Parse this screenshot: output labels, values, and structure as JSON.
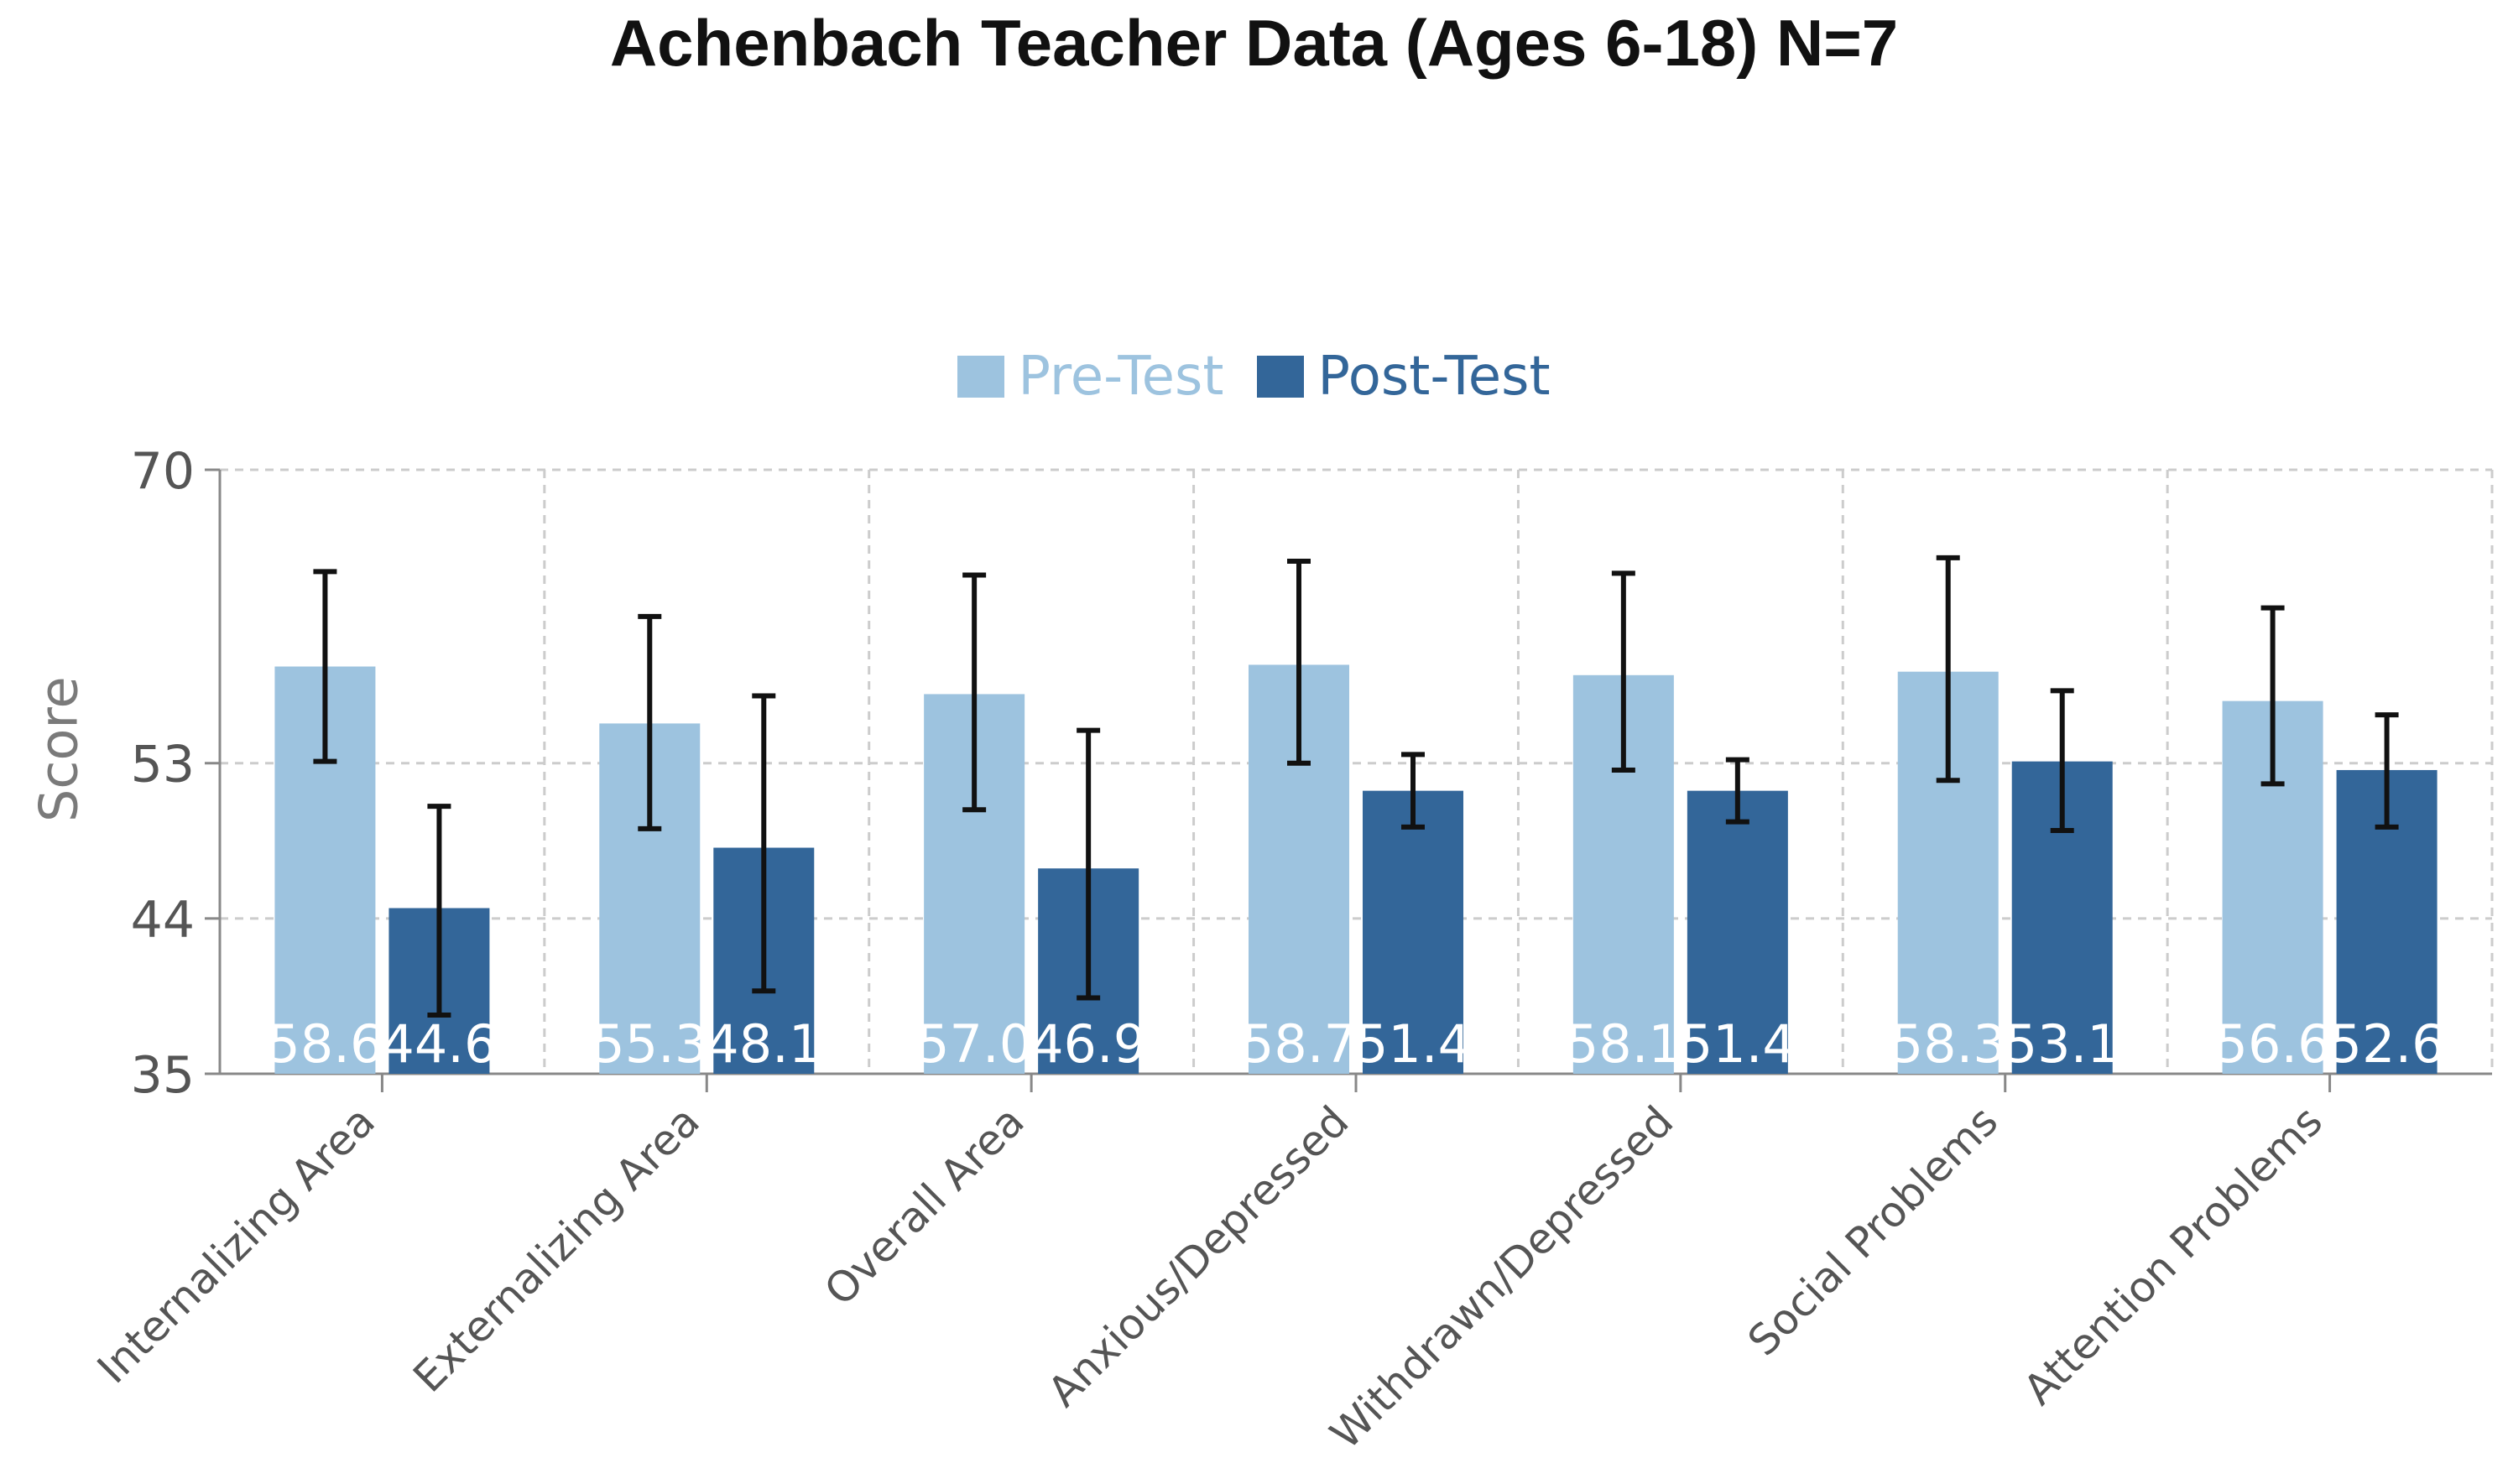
{
  "chart_data": {
    "type": "bar",
    "title": "Achenbach Teacher Data (Ages 6-18) N=7",
    "xlabel": "",
    "ylabel": "Score",
    "ylim": [
      35,
      70
    ],
    "yticks": [
      35,
      44,
      53,
      70
    ],
    "grid": true,
    "legend_position": "top-center",
    "categories": [
      "Internalizing Area",
      "Externalizing Area",
      "Overall Area",
      "Anxious/Depressed",
      "Withdrawn/Depressed",
      "Social Problems",
      "Attention Problems"
    ],
    "series": [
      {
        "name": "Pre-Test",
        "color": "#9dc3df",
        "values": [
          58.6,
          55.3,
          57.0,
          58.7,
          58.1,
          58.3,
          56.6
        ],
        "labels": [
          "58.6",
          "55.3",
          "57.0",
          "58.7",
          "58.1",
          "58.3",
          "56.6"
        ],
        "error_low": [
          53.1,
          49.2,
          50.3,
          53.0,
          52.6,
          52.0,
          51.8
        ],
        "error_high": [
          64.1,
          61.5,
          63.9,
          64.7,
          64.0,
          64.9,
          62.0
        ]
      },
      {
        "name": "Post-Test",
        "color": "#336699",
        "values": [
          44.6,
          48.1,
          46.9,
          51.4,
          51.4,
          53.1,
          52.6
        ],
        "labels": [
          "44.6",
          "48.1",
          "46.9",
          "51.4",
          "51.4",
          "53.1",
          "52.6"
        ],
        "error_low": [
          38.4,
          39.8,
          39.4,
          49.3,
          49.6,
          49.1,
          49.3
        ],
        "error_high": [
          50.5,
          56.9,
          54.9,
          53.5,
          53.2,
          57.2,
          55.8
        ]
      }
    ]
  }
}
